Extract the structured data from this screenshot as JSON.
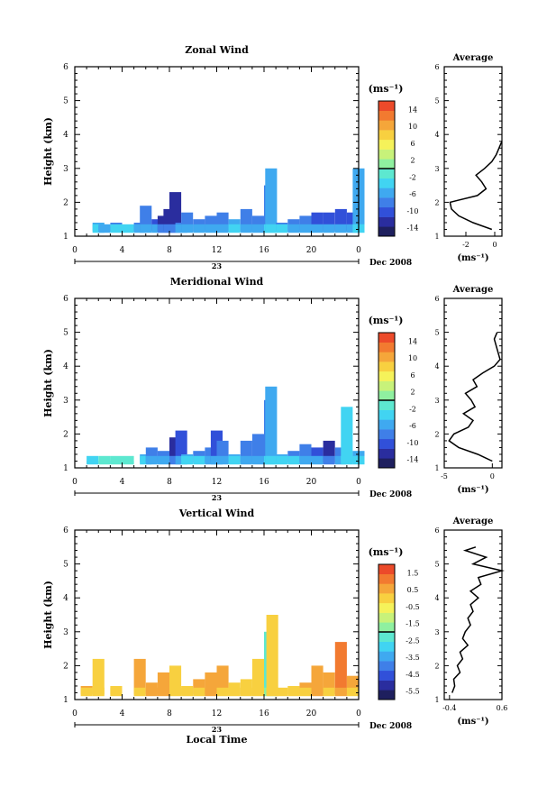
{
  "chart_data": [
    {
      "type": "heatmap",
      "title": "Zonal Wind",
      "ylabel": "Height (km)",
      "ylim": [
        1,
        6
      ],
      "xlim": [
        0,
        24
      ],
      "xticks": [
        "0",
        "4",
        "8",
        "12",
        "16",
        "20",
        "0"
      ],
      "yticks": [
        "1",
        "2",
        "3",
        "4",
        "5",
        "6"
      ],
      "date_label": "23",
      "month_label": "Dec 2008",
      "colorbar": {
        "label": "(ms⁻¹)",
        "ticks": [
          "14",
          "10",
          "6",
          "2",
          "-2",
          "-6",
          "-10",
          "-14"
        ],
        "range": [
          -16,
          16
        ]
      },
      "cells_v": [
        [
          1.5,
          1.4,
          -6
        ],
        [
          2.0,
          1.3,
          -8
        ],
        [
          3.0,
          1.4,
          -7
        ],
        [
          4.0,
          1.3,
          -7
        ],
        [
          5.0,
          1.4,
          -8
        ],
        [
          5.5,
          1.9,
          -8
        ],
        [
          6.5,
          1.5,
          -10
        ],
        [
          7.0,
          1.6,
          -12
        ],
        [
          7.5,
          1.8,
          -13
        ],
        [
          8.0,
          2.3,
          -12
        ],
        [
          8.5,
          1.4,
          -8
        ],
        [
          9.0,
          1.7,
          -9
        ],
        [
          10.0,
          1.5,
          -8
        ],
        [
          11.0,
          1.6,
          -9
        ],
        [
          12.0,
          1.7,
          -8
        ],
        [
          13.0,
          1.5,
          -6
        ],
        [
          14.0,
          1.8,
          -9
        ],
        [
          15.0,
          1.6,
          -8
        ],
        [
          16.0,
          2.5,
          -7
        ],
        [
          16.1,
          3.0,
          -6
        ],
        [
          17.0,
          1.4,
          -7
        ],
        [
          18.0,
          1.5,
          -8
        ],
        [
          19.0,
          1.6,
          -8
        ],
        [
          20.0,
          1.7,
          -10
        ],
        [
          21.0,
          1.7,
          -10
        ],
        [
          22.0,
          1.8,
          -11
        ],
        [
          23.0,
          1.7,
          -10
        ],
        [
          23.5,
          3.0,
          -5
        ]
      ],
      "avg_profile": {
        "title": "Average",
        "xlabel": "(ms⁻¹)",
        "xlim": [
          -3.5,
          0.5
        ],
        "xticks": [
          "-2",
          "0"
        ],
        "heights": [
          1.2,
          1.4,
          1.6,
          1.8,
          2.0,
          2.2,
          2.4,
          2.6,
          2.8,
          3.0,
          3.2,
          3.4,
          3.6,
          3.8
        ],
        "values": [
          -0.2,
          -1.5,
          -2.5,
          -3.0,
          -3.1,
          -1.2,
          -0.6,
          -0.9,
          -1.3,
          -0.7,
          -0.2,
          0.1,
          0.3,
          0.5
        ]
      }
    },
    {
      "type": "heatmap",
      "title": "Meridional Wind",
      "ylabel": "Height (km)",
      "ylim": [
        1,
        6
      ],
      "xlim": [
        0,
        24
      ],
      "xticks": [
        "0",
        "4",
        "8",
        "12",
        "16",
        "20",
        "0"
      ],
      "yticks": [
        "1",
        "2",
        "3",
        "4",
        "5",
        "6"
      ],
      "date_label": "23",
      "month_label": "Dec 2008",
      "colorbar": {
        "label": "(ms⁻¹)",
        "ticks": [
          "14",
          "10",
          "6",
          "2",
          "-2",
          "-6",
          "-10",
          "-14"
        ],
        "range": [
          -16,
          16
        ]
      },
      "cells_v": [
        [
          1.0,
          1.2,
          -4
        ],
        [
          2.0,
          1.2,
          -3
        ],
        [
          3.0,
          1.2,
          -3
        ],
        [
          4.0,
          1.2,
          -3
        ],
        [
          5.5,
          1.4,
          -6
        ],
        [
          6.0,
          1.6,
          -9
        ],
        [
          7.0,
          1.5,
          -8
        ],
        [
          8.0,
          1.9,
          -12
        ],
        [
          8.5,
          2.1,
          -11
        ],
        [
          9.0,
          1.4,
          -6
        ],
        [
          10.0,
          1.5,
          -7
        ],
        [
          11.0,
          1.6,
          -8
        ],
        [
          11.5,
          2.1,
          -10
        ],
        [
          12.0,
          1.8,
          -9
        ],
        [
          13.0,
          1.4,
          -5
        ],
        [
          14.0,
          1.8,
          -8
        ],
        [
          15.0,
          2.0,
          -8
        ],
        [
          16.0,
          3.0,
          -7
        ],
        [
          16.1,
          3.4,
          -6
        ],
        [
          17.0,
          1.4,
          -6
        ],
        [
          18.0,
          1.5,
          -7
        ],
        [
          19.0,
          1.7,
          -9
        ],
        [
          20.0,
          1.6,
          -10
        ],
        [
          21.0,
          1.8,
          -12
        ],
        [
          22.0,
          1.6,
          -8
        ],
        [
          22.5,
          2.8,
          -4
        ],
        [
          23.5,
          1.5,
          -5
        ]
      ],
      "avg_profile": {
        "title": "Average",
        "xlabel": "(ms⁻¹)",
        "xlim": [
          -5,
          1
        ],
        "xticks": [
          "-5",
          "0"
        ],
        "heights": [
          1.2,
          1.4,
          1.6,
          1.8,
          2.0,
          2.2,
          2.4,
          2.6,
          2.8,
          3.0,
          3.2,
          3.4,
          3.6,
          3.8,
          4.0,
          4.2,
          4.8,
          5.0
        ],
        "values": [
          0,
          -1.5,
          -3.5,
          -4.5,
          -4.0,
          -2.5,
          -2.0,
          -3.0,
          -1.8,
          -2.2,
          -2.8,
          -1.6,
          -2.0,
          -1.0,
          0.2,
          0.8,
          0.2,
          0.5
        ]
      }
    },
    {
      "type": "heatmap",
      "title": "Vertical Wind",
      "xlabel": "Local Time",
      "ylabel": "Height (km)",
      "ylim": [
        1,
        6
      ],
      "xlim": [
        0,
        24
      ],
      "xticks": [
        "0",
        "4",
        "8",
        "12",
        "16",
        "20",
        "0"
      ],
      "yticks": [
        "1",
        "2",
        "3",
        "4",
        "5",
        "6"
      ],
      "date_label": "23",
      "month_label": "Dec 2008",
      "colorbar": {
        "label": "(ms⁻¹)",
        "ticks": [
          "1.5",
          "0.5",
          "-0.5",
          "-1.5",
          "-2.5",
          "-3.5",
          "-4.5",
          "-5.5"
        ],
        "range": [
          -6,
          2
        ]
      },
      "cells_v": [
        [
          0.5,
          1.4,
          0.3
        ],
        [
          1.5,
          2.2,
          0.2
        ],
        [
          3.0,
          1.4,
          0.0
        ],
        [
          5.0,
          2.2,
          0.3
        ],
        [
          6.0,
          1.5,
          0.6
        ],
        [
          7.0,
          1.8,
          0.5
        ],
        [
          8.0,
          2.0,
          0.2
        ],
        [
          9.0,
          1.4,
          0.1
        ],
        [
          10.0,
          1.6,
          0.4
        ],
        [
          11.0,
          1.8,
          0.8
        ],
        [
          12.0,
          2.0,
          0.3
        ],
        [
          13.0,
          1.5,
          0.0
        ],
        [
          14.0,
          1.6,
          0.2
        ],
        [
          15.0,
          2.2,
          0.1
        ],
        [
          16.0,
          3.0,
          -2.5
        ],
        [
          16.2,
          3.5,
          0.1
        ],
        [
          17.0,
          1.3,
          0.2
        ],
        [
          18.0,
          1.4,
          0.1
        ],
        [
          19.0,
          1.5,
          0.3
        ],
        [
          20.0,
          2.0,
          0.6
        ],
        [
          21.0,
          1.8,
          0.3
        ],
        [
          22.0,
          2.7,
          1.0
        ],
        [
          23.0,
          1.7,
          0.4
        ]
      ],
      "avg_profile": {
        "title": "Average",
        "xlabel": "(ms⁻¹)",
        "xlim": [
          -0.5,
          0.6
        ],
        "xticks": [
          "-0.4",
          "0.6"
        ],
        "heights": [
          1.2,
          1.4,
          1.6,
          1.8,
          2.0,
          2.2,
          2.4,
          2.6,
          2.8,
          3.0,
          3.2,
          3.4,
          3.6,
          3.8,
          4.0,
          4.2,
          4.4,
          4.6,
          4.8,
          5.0,
          5.2,
          5.4,
          5.5
        ],
        "values": [
          -0.35,
          -0.3,
          -0.32,
          -0.2,
          -0.25,
          -0.15,
          -0.2,
          -0.05,
          -0.15,
          -0.1,
          0.0,
          -0.05,
          0.05,
          0.0,
          0.15,
          0.0,
          0.2,
          0.15,
          0.6,
          0.05,
          0.3,
          -0.1,
          0.1
        ]
      }
    }
  ]
}
